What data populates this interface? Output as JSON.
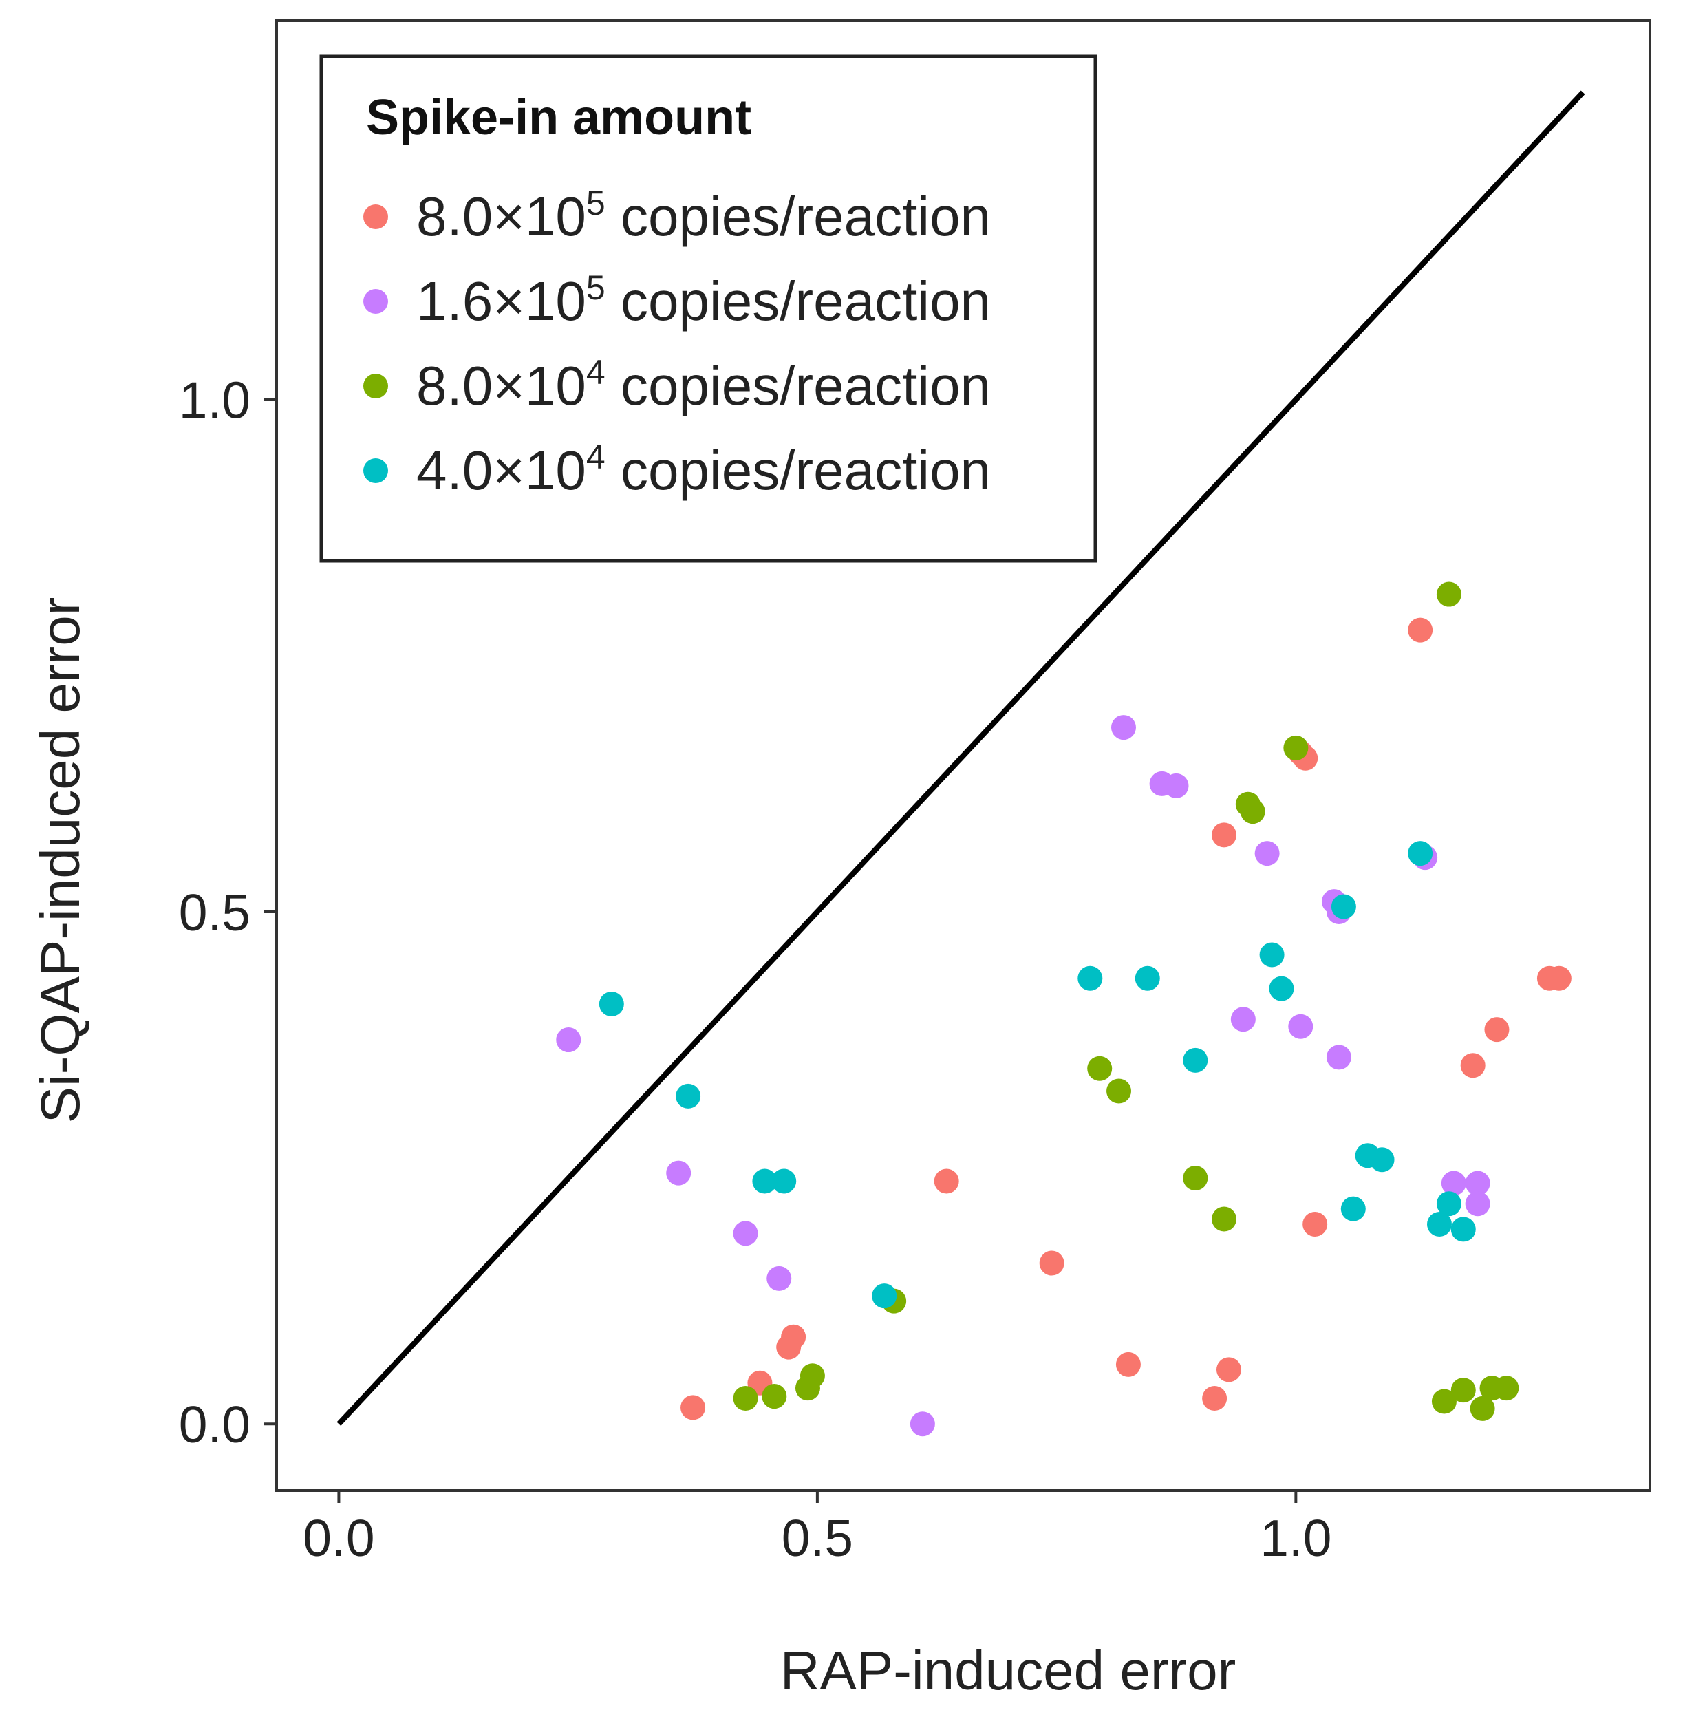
{
  "chart_data": {
    "type": "scatter",
    "xlabel": "RAP-induced error",
    "ylabel": "Si-QAP-induced error",
    "xlim": [
      -0.065,
      1.37
    ],
    "ylim": [
      -0.065,
      1.37
    ],
    "x_ticks": [
      0.0,
      0.5,
      1.0
    ],
    "x_tick_labels": [
      "0.0",
      "0.5",
      "1.0"
    ],
    "y_ticks": [
      0.0,
      0.5,
      1.0
    ],
    "y_tick_labels": [
      "0.0",
      "0.5",
      "1.0"
    ],
    "reference_line": {
      "from": [
        0,
        0
      ],
      "to": [
        1.3,
        1.3
      ]
    },
    "grid": false,
    "legend": {
      "title": "Spike-in amount",
      "position": "top-left",
      "entries": [
        {
          "base": "8.0×10",
          "exp": "5",
          "suffix": "copies/reaction"
        },
        {
          "base": "1.6×10",
          "exp": "5",
          "suffix": "copies/reaction"
        },
        {
          "base": "8.0×10",
          "exp": "4",
          "suffix": "copies/reaction"
        },
        {
          "base": "4.0×10",
          "exp": "4",
          "suffix": "copies/reaction"
        }
      ]
    },
    "series": [
      {
        "color": "#F8766D",
        "points": [
          [
            1.13,
            0.775
          ],
          [
            1.005,
            0.655
          ],
          [
            1.01,
            0.65
          ],
          [
            0.925,
            0.575
          ],
          [
            1.265,
            0.435
          ],
          [
            1.275,
            0.435
          ],
          [
            1.21,
            0.385
          ],
          [
            1.185,
            0.35
          ],
          [
            0.635,
            0.237
          ],
          [
            1.02,
            0.195
          ],
          [
            0.745,
            0.157
          ],
          [
            0.475,
            0.085
          ],
          [
            0.47,
            0.075
          ],
          [
            0.825,
            0.058
          ],
          [
            0.93,
            0.053
          ],
          [
            0.44,
            0.04
          ],
          [
            0.915,
            0.025
          ],
          [
            0.37,
            0.016
          ]
        ]
      },
      {
        "color": "#C77CFF",
        "points": [
          [
            0.82,
            0.68
          ],
          [
            0.86,
            0.625
          ],
          [
            0.875,
            0.623
          ],
          [
            0.97,
            0.557
          ],
          [
            1.135,
            0.553
          ],
          [
            1.04,
            0.51
          ],
          [
            1.045,
            0.5
          ],
          [
            0.945,
            0.395
          ],
          [
            1.005,
            0.388
          ],
          [
            1.045,
            0.358
          ],
          [
            0.24,
            0.375
          ],
          [
            0.355,
            0.245
          ],
          [
            1.165,
            0.235
          ],
          [
            1.19,
            0.235
          ],
          [
            1.19,
            0.215
          ],
          [
            0.425,
            0.186
          ],
          [
            0.46,
            0.142
          ],
          [
            0.61,
            0.0
          ]
        ]
      },
      {
        "color": "#7CAE00",
        "points": [
          [
            1.16,
            0.81
          ],
          [
            1.0,
            0.66
          ],
          [
            0.95,
            0.605
          ],
          [
            0.955,
            0.598
          ],
          [
            0.795,
            0.347
          ],
          [
            0.815,
            0.325
          ],
          [
            0.895,
            0.24
          ],
          [
            0.925,
            0.2
          ],
          [
            0.58,
            0.12
          ],
          [
            0.495,
            0.047
          ],
          [
            0.49,
            0.035
          ],
          [
            0.425,
            0.025
          ],
          [
            0.455,
            0.027
          ],
          [
            1.155,
            0.022
          ],
          [
            1.175,
            0.033
          ],
          [
            1.195,
            0.015
          ],
          [
            1.205,
            0.035
          ],
          [
            1.22,
            0.035
          ]
        ]
      },
      {
        "color": "#00BFC4",
        "points": [
          [
            0.285,
            0.41
          ],
          [
            0.365,
            0.32
          ],
          [
            0.445,
            0.237
          ],
          [
            0.465,
            0.237
          ],
          [
            0.57,
            0.125
          ],
          [
            0.785,
            0.435
          ],
          [
            0.845,
            0.435
          ],
          [
            0.895,
            0.355
          ],
          [
            0.975,
            0.458
          ],
          [
            0.985,
            0.425
          ],
          [
            1.05,
            0.505
          ],
          [
            1.13,
            0.557
          ],
          [
            1.075,
            0.262
          ],
          [
            1.09,
            0.258
          ],
          [
            1.06,
            0.21
          ],
          [
            1.15,
            0.195
          ],
          [
            1.16,
            0.215
          ],
          [
            1.175,
            0.19
          ]
        ]
      }
    ]
  }
}
